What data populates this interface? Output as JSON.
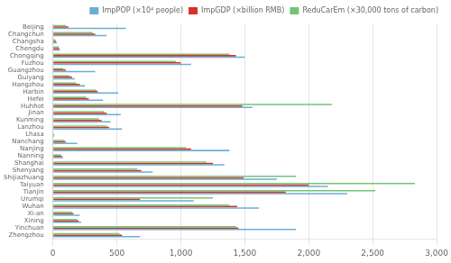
{
  "chart_data": {
    "type": "bar",
    "orientation": "horizontal",
    "categories": [
      "Beijing",
      "Changchun",
      "Changsha",
      "Chengdu",
      "Chongqing",
      "Fuzhou",
      "Guangzhou",
      "Guiyang",
      "Hangzhou",
      "Harbin",
      "Hefei",
      "Huhhot",
      "Jinan",
      "Kunming",
      "Lanzhou",
      "Lhasa",
      "Nanchang",
      "Nanjing",
      "Nanning",
      "Shanghai",
      "Shenyang",
      "Shijiazhuang",
      "Taiyuan",
      "Tianjin",
      "Urumqi",
      "Wuhan",
      "Xi-an",
      "Xining",
      "Yinchuan",
      "Zhengzhou"
    ],
    "series": [
      {
        "name": "ReduCarEm (×30,000 tons of carbon)",
        "color": "#74C476",
        "values": [
          100,
          310,
          18,
          45,
          1380,
          960,
          80,
          130,
          180,
          340,
          260,
          2180,
          400,
          360,
          420,
          6,
          90,
          1040,
          60,
          1200,
          660,
          1900,
          2830,
          2520,
          1250,
          1380,
          150,
          185,
          1430,
          520
        ]
      },
      {
        "name": "ImpGDP (×billion RMB)",
        "color": "#D73027",
        "values": [
          120,
          330,
          25,
          50,
          1430,
          1000,
          100,
          150,
          210,
          350,
          280,
          1480,
          420,
          380,
          440,
          8,
          100,
          1080,
          70,
          1250,
          690,
          1490,
          2000,
          1820,
          680,
          1440,
          160,
          200,
          1450,
          540
        ]
      },
      {
        "name": "ImpPOP (×10⁴ people)",
        "color": "#6BAED6",
        "values": [
          570,
          420,
          30,
          55,
          1500,
          1080,
          330,
          170,
          250,
          510,
          390,
          1560,
          530,
          450,
          540,
          10,
          190,
          1380,
          80,
          1340,
          780,
          1750,
          2150,
          2300,
          1100,
          1610,
          210,
          220,
          1900,
          680
        ]
      }
    ],
    "xlim": [
      0,
      3000
    ],
    "xticks": [
      0,
      500,
      1000,
      1500,
      2000,
      2500,
      3000
    ],
    "grid": true,
    "legend": "upper right"
  }
}
